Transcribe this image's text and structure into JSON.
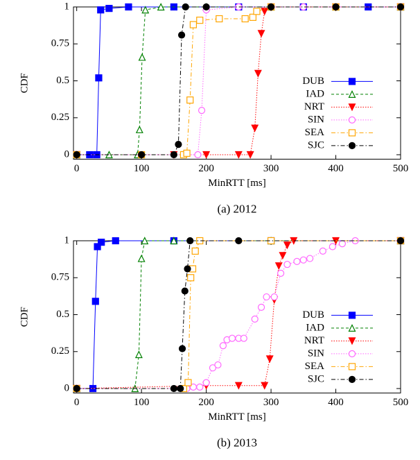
{
  "chart_data": [
    {
      "type": "line",
      "title": "(a) 2012",
      "x_label": "MinRTT [ms]",
      "y_label": "CDF",
      "xlim": [
        -5,
        500
      ],
      "xticks": [
        0,
        100,
        200,
        300,
        400,
        500
      ],
      "ylim": [
        -0.03,
        1
      ],
      "yticks": [
        0,
        0.25,
        0.5,
        0.75,
        1
      ],
      "legend": "right",
      "series": [
        {
          "name": "DUB",
          "color": "#0000ff",
          "linestyle": "solid",
          "marker": "filled-square",
          "x": [
            0,
            20,
            31,
            34,
            37,
            50,
            80,
            150,
            250,
            350,
            450,
            500
          ],
          "values": [
            0,
            0,
            0,
            0.52,
            0.98,
            0.99,
            1,
            1,
            1,
            1,
            1,
            1
          ]
        },
        {
          "name": "IAD",
          "color": "#008000",
          "linestyle": "dashed",
          "marker": "open-triangle",
          "x": [
            0,
            50,
            94,
            97,
            101,
            106,
            130,
            200,
            300,
            400,
            500
          ],
          "values": [
            0,
            0,
            0,
            0.17,
            0.66,
            0.98,
            1,
            1,
            1,
            1,
            1
          ]
        },
        {
          "name": "NRT",
          "color": "#ff0000",
          "linestyle": "dotted",
          "marker": "filled-down-triangle",
          "x": [
            0,
            150,
            200,
            250,
            268,
            275,
            280,
            285,
            290,
            300,
            400,
            500
          ],
          "values": [
            0,
            0,
            0,
            0,
            0,
            0.18,
            0.55,
            0.82,
            0.97,
            1,
            1,
            1
          ]
        },
        {
          "name": "SIN",
          "color": "#ff66ff",
          "linestyle": "dotted",
          "marker": "open-circle",
          "x": [
            0,
            100,
            187,
            193,
            200,
            250,
            350,
            500
          ],
          "values": [
            0,
            0,
            0,
            0.3,
            0.98,
            1,
            1,
            1
          ]
        },
        {
          "name": "SEA",
          "color": "#ffa500",
          "linestyle": "dashdot",
          "marker": "open-square",
          "x": [
            0,
            100,
            165,
            170,
            175,
            180,
            190,
            220,
            260,
            272,
            278,
            300,
            400,
            500
          ],
          "values": [
            0,
            0,
            0,
            0.01,
            0.37,
            0.88,
            0.91,
            0.92,
            0.92,
            0.93,
            0.97,
            1,
            1,
            1
          ]
        },
        {
          "name": "SJC",
          "color": "#000000",
          "linestyle": "dashdot",
          "marker": "filled-circle",
          "x": [
            0,
            100,
            150,
            157,
            162,
            168,
            200,
            300,
            400,
            500
          ],
          "values": [
            0,
            0,
            0,
            0.07,
            0.81,
            1,
            1,
            1,
            1,
            1
          ]
        }
      ]
    },
    {
      "type": "line",
      "title": "(b) 2013",
      "x_label": "MinRTT [ms]",
      "y_label": "CDF",
      "xlim": [
        -5,
        500
      ],
      "xticks": [
        0,
        100,
        200,
        300,
        400,
        500
      ],
      "ylim": [
        -0.03,
        1
      ],
      "yticks": [
        0,
        0.25,
        0.5,
        0.75,
        1
      ],
      "legend": "right",
      "series": [
        {
          "name": "DUB",
          "color": "#0000ff",
          "linestyle": "solid",
          "marker": "filled-square",
          "x": [
            0,
            25,
            29,
            32,
            38,
            60,
            150,
            300,
            500
          ],
          "values": [
            0,
            0,
            0.59,
            0.96,
            0.99,
            1,
            1,
            1,
            1
          ]
        },
        {
          "name": "IAD",
          "color": "#008000",
          "linestyle": "dashed",
          "marker": "open-triangle",
          "x": [
            0,
            90,
            96,
            100,
            105,
            150,
            300,
            500
          ],
          "values": [
            0,
            0,
            0.23,
            0.88,
            1,
            1,
            1,
            1
          ]
        },
        {
          "name": "NRT",
          "color": "#ff0000",
          "linestyle": "dotted",
          "marker": "filled-down-triangle",
          "x": [
            0,
            200,
            250,
            290,
            298,
            305,
            312,
            318,
            325,
            335,
            400,
            500
          ],
          "values": [
            0,
            0.02,
            0.02,
            0.02,
            0.2,
            0.6,
            0.83,
            0.9,
            0.97,
            1,
            1,
            1
          ]
        },
        {
          "name": "SIN",
          "color": "#ff66ff",
          "linestyle": "dotted",
          "marker": "open-circle",
          "x": [
            0,
            170,
            180,
            190,
            200,
            210,
            218,
            226,
            232,
            240,
            250,
            258,
            275,
            285,
            293,
            305,
            315,
            325,
            340,
            350,
            360,
            380,
            395,
            410,
            430,
            500
          ],
          "values": [
            0,
            0,
            0.01,
            0.01,
            0.04,
            0.14,
            0.16,
            0.29,
            0.33,
            0.34,
            0.34,
            0.34,
            0.47,
            0.55,
            0.62,
            0.62,
            0.78,
            0.84,
            0.86,
            0.87,
            0.88,
            0.93,
            0.96,
            0.98,
            1,
            1
          ]
        },
        {
          "name": "SEA",
          "color": "#ffa500",
          "linestyle": "dashdot",
          "marker": "open-square",
          "x": [
            0,
            165,
            172,
            176,
            179,
            183,
            190,
            300,
            500
          ],
          "values": [
            0,
            0,
            0.04,
            0.75,
            0.81,
            0.93,
            1,
            1,
            1
          ]
        },
        {
          "name": "SJC",
          "color": "#000000",
          "linestyle": "dashdot",
          "marker": "filled-circle",
          "x": [
            0,
            150,
            160,
            163,
            167,
            171,
            175,
            250,
            500
          ],
          "values": [
            0,
            0,
            0,
            0.27,
            0.66,
            0.81,
            1,
            1,
            1
          ]
        }
      ]
    }
  ]
}
